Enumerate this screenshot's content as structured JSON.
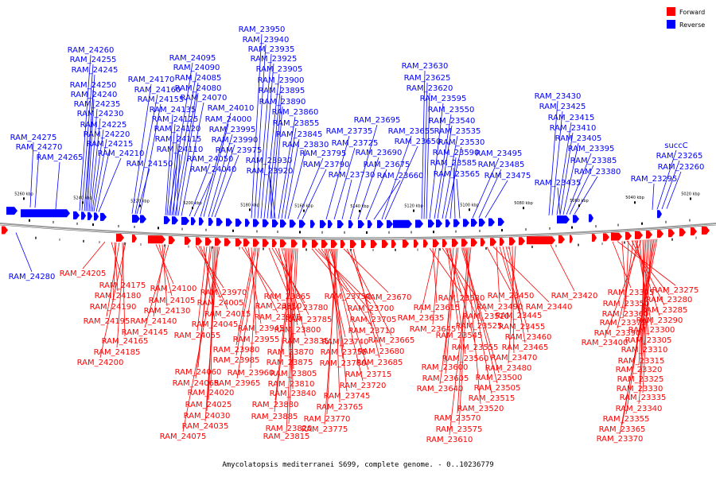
{
  "caption": "Amycolatopsis mediterranei S699, complete genome. - 0..10236779",
  "legend": [
    {
      "label": "Forward",
      "color": "#ff0000"
    },
    {
      "label": "Reverse",
      "color": "#0000ff"
    }
  ],
  "scale_labels": [
    "5260 kbp",
    "5240 kbp",
    "5220 kbp",
    "5200 kbp",
    "5180 kbp",
    "5160 kbp",
    "5140 kbp",
    "5120 kbp",
    "5100 kbp",
    "5080 kbp",
    "5060 kbp",
    "5040 kbp",
    "5020 kbp"
  ],
  "reverse_labels": [
    "RAM_24260",
    "RAM_24255",
    "RAM_24245",
    "RAM_24250",
    "RAM_24240",
    "RAM_24235",
    "RAM_24230",
    "RAM_24225",
    "RAM_24220",
    "RAM_24215",
    "RAM_24210",
    "RAM_24275",
    "RAM_24270",
    "RAM_24265",
    "RAM_24170",
    "RAM_24160",
    "RAM_24155",
    "RAM_24150",
    "RAM_24095",
    "RAM_24090",
    "RAM_24085",
    "RAM_24080",
    "RAM_24070",
    "RAM_24135",
    "RAM_24125",
    "RAM_24120",
    "RAM_24115",
    "RAM_24110",
    "RAM_24010",
    "RAM_24000",
    "RAM_23995",
    "RAM_23990",
    "RAM_23975",
    "RAM_24050",
    "RAM_24040",
    "RAM_23950",
    "RAM_23940",
    "RAM_23935",
    "RAM_23925",
    "RAM_23905",
    "RAM_23900",
    "RAM_23895",
    "RAM_23890",
    "RAM_23860",
    "RAM_23855",
    "RAM_23845",
    "RAM_23830",
    "RAM_23930",
    "RAM_23920",
    "RAM_23795",
    "RAM_23790",
    "RAM_23735",
    "RAM_23725",
    "RAM_23730",
    "RAM_23695",
    "RAM_23690",
    "RAM_23675",
    "RAM_23660",
    "RAM_23655",
    "RAM_23650",
    "RAM_23630",
    "RAM_23625",
    "RAM_23620",
    "RAM_23595",
    "RAM_23550",
    "RAM_23540",
    "RAM_23535",
    "RAM_23530",
    "RAM_23590",
    "RAM_23585",
    "RAM_23565",
    "RAM_23495",
    "RAM_23485",
    "RAM_23475",
    "RAM_23430",
    "RAM_23425",
    "RAM_23415",
    "RAM_23410",
    "RAM_23405",
    "RAM_23395",
    "RAM_23385",
    "RAM_23380",
    "RAM_23435",
    "RAM_23295",
    "succC",
    "RAM_23265",
    "RAM_23260",
    "RAM_24280"
  ],
  "forward_labels": [
    "RAM_24205",
    "RAM_24175",
    "RAM_24180",
    "RAM_24190",
    "RAM_24195",
    "RAM_24165",
    "RAM_24185",
    "RAM_24200",
    "RAM_24100",
    "RAM_24105",
    "RAM_24130",
    "RAM_24140",
    "RAM_24145",
    "RAM_23970",
    "RAM_24005",
    "RAM_24015",
    "RAM_24045",
    "RAM_24055",
    "RAM_24060",
    "RAM_24065",
    "RAM_24020",
    "RAM_24025",
    "RAM_24030",
    "RAM_24035",
    "RAM_24075",
    "RAM_23910",
    "RAM_23915",
    "RAM_23945",
    "RAM_23955",
    "RAM_23980",
    "RAM_23985",
    "RAM_23960",
    "RAM_23965",
    "RAM_23865",
    "RAM_23780",
    "RAM_23785",
    "RAM_23800",
    "RAM_23835",
    "RAM_23870",
    "RAM_23875",
    "RAM_23805",
    "RAM_23810",
    "RAM_23840",
    "RAM_23880",
    "RAM_23885",
    "RAM_23815",
    "RAM_23820",
    "RAM_23750",
    "RAM_23700",
    "RAM_23705",
    "RAM_23710",
    "RAM_23740",
    "RAM_23755",
    "RAM_23760",
    "RAM_23715",
    "RAM_23720",
    "RAM_23745",
    "RAM_23765",
    "RAM_23770",
    "RAM_23775",
    "RAM_23670",
    "RAM_23665",
    "RAM_23680",
    "RAM_23685",
    "RAM_23580",
    "RAM_23615",
    "RAM_23635",
    "RAM_23645",
    "RAM_23510",
    "RAM_23525",
    "RAM_23545",
    "RAM_23555",
    "RAM_23560",
    "RAM_23600",
    "RAM_23605",
    "RAM_23640",
    "RAM_23500",
    "RAM_23505",
    "RAM_23515",
    "RAM_23520",
    "RAM_23570",
    "RAM_23575",
    "RAM_23610",
    "RAM_23450",
    "RAM_23440",
    "RAM_23490",
    "RAM_23445",
    "RAM_23455",
    "RAM_23460",
    "RAM_23465",
    "RAM_23470",
    "RAM_23480",
    "RAM_23420",
    "RAM_23345",
    "RAM_23275",
    "RAM_23350",
    "RAM_23280",
    "RAM_23360",
    "RAM_23285",
    "RAM_23375",
    "RAM_23290",
    "RAM_23300",
    "RAM_23390",
    "RAM_23305",
    "RAM_23400",
    "RAM_23310",
    "RAM_23315",
    "RAM_23320",
    "RAM_23325",
    "RAM_23330",
    "RAM_23335",
    "RAM_23340",
    "RAM_23355",
    "RAM_23365",
    "RAM_23370"
  ]
}
